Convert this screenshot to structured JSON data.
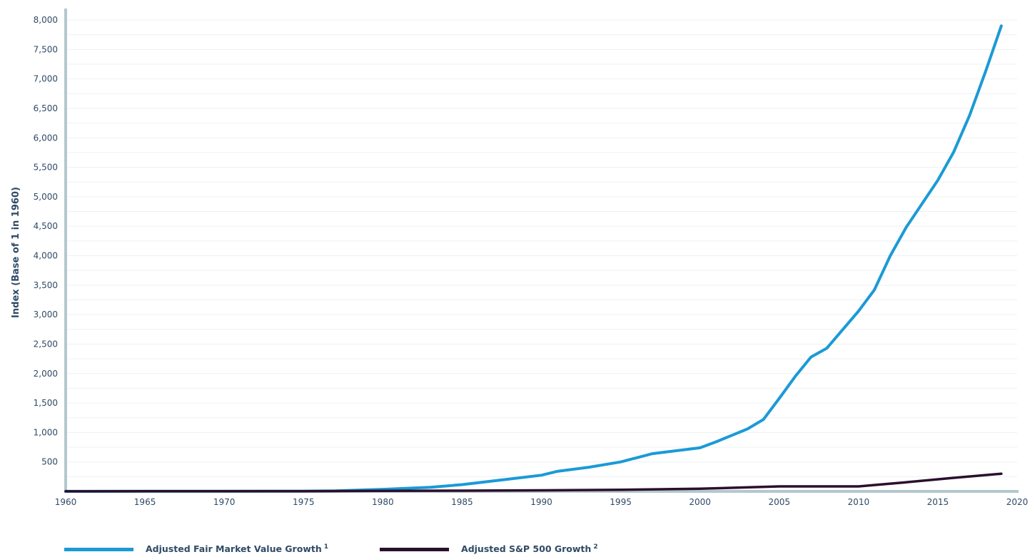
{
  "chart_data": {
    "type": "line",
    "title": "",
    "xlabel": "",
    "ylabel": "Index (Base of 1 in 1960)",
    "xlim": [
      1960,
      2020
    ],
    "ylim": [
      0,
      8000
    ],
    "x_ticks": [
      "1960",
      "1965",
      "1970",
      "1975",
      "1980",
      "1985",
      "1990",
      "1995",
      "2000",
      "2005",
      "2010",
      "2015",
      "2020"
    ],
    "y_ticks": [
      "500",
      "1,000",
      "1,500",
      "2,000",
      "2,500",
      "3,000",
      "3,500",
      "4,000",
      "4,500",
      "5,000",
      "5,500",
      "6,000",
      "6,500",
      "7,000",
      "7,500",
      "8,000"
    ],
    "grid": "horizontal",
    "legend_position": "bottom",
    "series": [
      {
        "name": "Adjusted Fair Market Value Growth",
        "footnote": "1",
        "color": "#1b9ad6",
        "points": [
          [
            1960,
            1
          ],
          [
            1965,
            2
          ],
          [
            1970,
            3
          ],
          [
            1975,
            5
          ],
          [
            1977,
            10
          ],
          [
            1980,
            35
          ],
          [
            1983,
            70
          ],
          [
            1985,
            115
          ],
          [
            1988,
            210
          ],
          [
            1990,
            275
          ],
          [
            1991,
            340
          ],
          [
            1993,
            410
          ],
          [
            1995,
            500
          ],
          [
            1997,
            640
          ],
          [
            2000,
            740
          ],
          [
            2001,
            840
          ],
          [
            2003,
            1060
          ],
          [
            2004,
            1220
          ],
          [
            2005,
            1580
          ],
          [
            2006,
            1950
          ],
          [
            2007,
            2280
          ],
          [
            2008,
            2430
          ],
          [
            2010,
            3060
          ],
          [
            2011,
            3420
          ],
          [
            2012,
            4000
          ],
          [
            2013,
            4480
          ],
          [
            2015,
            5280
          ],
          [
            2016,
            5760
          ],
          [
            2017,
            6380
          ],
          [
            2018,
            7120
          ],
          [
            2019,
            7900
          ]
        ]
      },
      {
        "name": "Adjusted S&P 500 Growth",
        "footnote": "2",
        "color": "#2b0f2e",
        "points": [
          [
            1960,
            1
          ],
          [
            1965,
            2
          ],
          [
            1970,
            3
          ],
          [
            1975,
            3
          ],
          [
            1980,
            8
          ],
          [
            1985,
            12
          ],
          [
            1990,
            18
          ],
          [
            1995,
            28
          ],
          [
            2000,
            45
          ],
          [
            2005,
            85
          ],
          [
            2008,
            85
          ],
          [
            2010,
            85
          ],
          [
            2013,
            155
          ],
          [
            2016,
            230
          ],
          [
            2019,
            300
          ]
        ]
      }
    ]
  }
}
